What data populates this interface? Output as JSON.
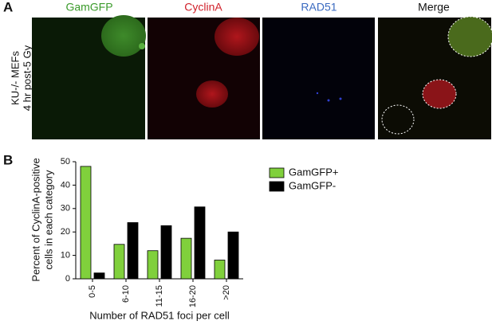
{
  "panel_a": {
    "label": "A",
    "side_label": [
      "KU-/- MEFs",
      "4 hr post-5 Gy"
    ],
    "panel_titles": [
      "GamGFP",
      "CyclinA",
      "RAD51",
      "Merge"
    ]
  },
  "panel_b_label": "B",
  "chart_data": {
    "type": "bar",
    "ylabel": [
      "Percent of CyclinA-positive",
      "cells in each category"
    ],
    "xlabel": "Number of RAD51 foci per cell",
    "categories": [
      "0-5",
      "6-10",
      "11-15",
      "16-20",
      ">20"
    ],
    "series": [
      {
        "name": "GamGFP+",
        "color": "#80d03c",
        "values": [
          48,
          14.7,
          12,
          17.3,
          8
        ]
      },
      {
        "name": "GamGFP-",
        "color": "#000000",
        "values": [
          2.5,
          24,
          22.7,
          30.7,
          20
        ]
      }
    ],
    "ylim": [
      0,
      50
    ],
    "yticks": [
      0,
      10,
      20,
      30,
      40,
      50
    ],
    "grid": false
  }
}
